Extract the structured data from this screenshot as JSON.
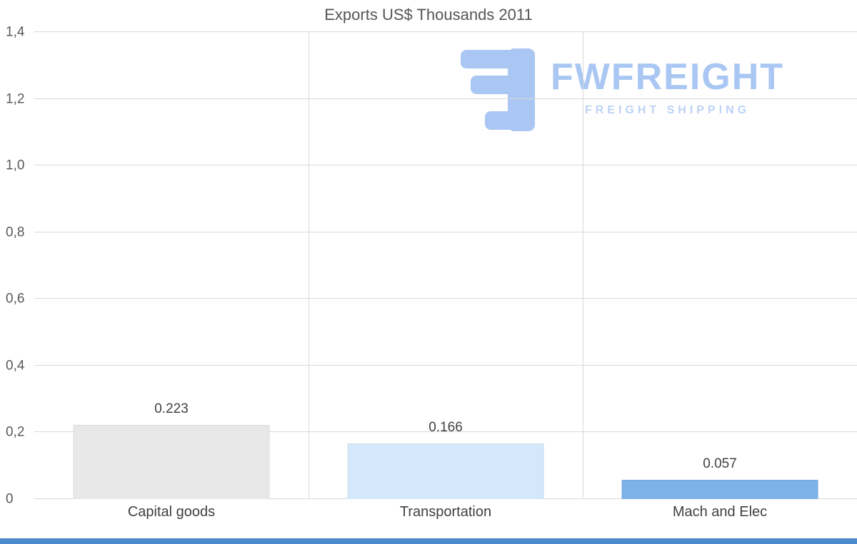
{
  "watermark": {
    "brand": "FWFREIGHT",
    "tagline": "FREIGHT SHIPPING",
    "color": "#a9c7f2"
  },
  "colors": {
    "bottom_bar": "#4d8bce",
    "gridline": "#d9d9d9",
    "title_text": "#555555"
  },
  "chart_data": {
    "type": "bar",
    "title": "Exports US$ Thousands 2011",
    "categories": [
      "Capital goods",
      "Transportation",
      "Mach and Elec"
    ],
    "values": [
      0.223,
      0.166,
      0.057
    ],
    "value_labels": [
      "0.223",
      "0.166",
      "0.057"
    ],
    "bar_colors": [
      "#e8e8e8",
      "#d4e8fb",
      "#7cb2e8"
    ],
    "xlabel": "",
    "ylabel": "",
    "ylim": [
      0,
      1.4
    ],
    "y_ticks": [
      {
        "label": "0",
        "value": 0
      },
      {
        "label": "0,2",
        "value": 0.2
      },
      {
        "label": "0,4",
        "value": 0.4
      },
      {
        "label": "0,6",
        "value": 0.6
      },
      {
        "label": "0,8",
        "value": 0.8
      },
      {
        "label": "1,0",
        "value": 1.0
      },
      {
        "label": "1,2",
        "value": 1.2
      },
      {
        "label": "1,4",
        "value": 1.4
      }
    ],
    "grid": true,
    "legend": false
  }
}
